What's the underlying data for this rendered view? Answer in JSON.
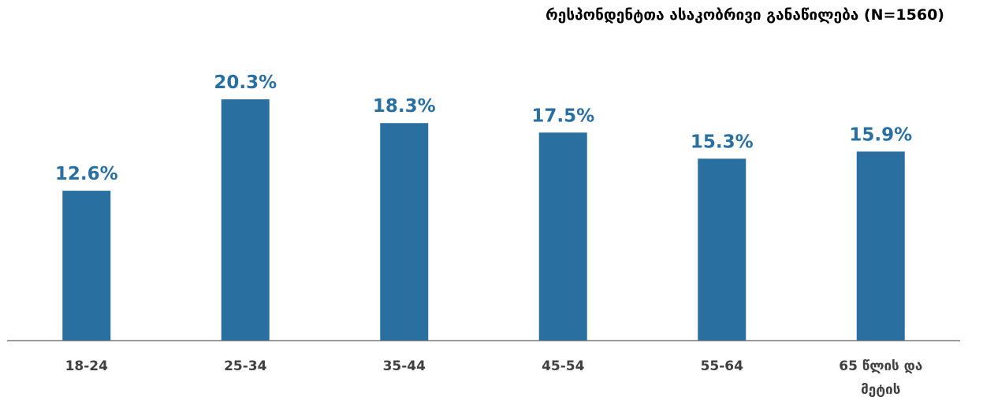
{
  "chart_data": {
    "type": "bar",
    "title": "რესპონდენტთა ასაკობრივი განაწილება (N=1560)",
    "categories": [
      "18-24",
      "25-34",
      "35-44",
      "45-54",
      "55-64",
      "65 წლის და მეტის"
    ],
    "values": [
      12.6,
      20.3,
      18.3,
      17.5,
      15.3,
      15.9
    ],
    "value_labels": [
      "12.6%",
      "20.3%",
      "18.3%",
      "17.5%",
      "15.3%",
      "15.9%"
    ],
    "color": "#2970a1"
  }
}
